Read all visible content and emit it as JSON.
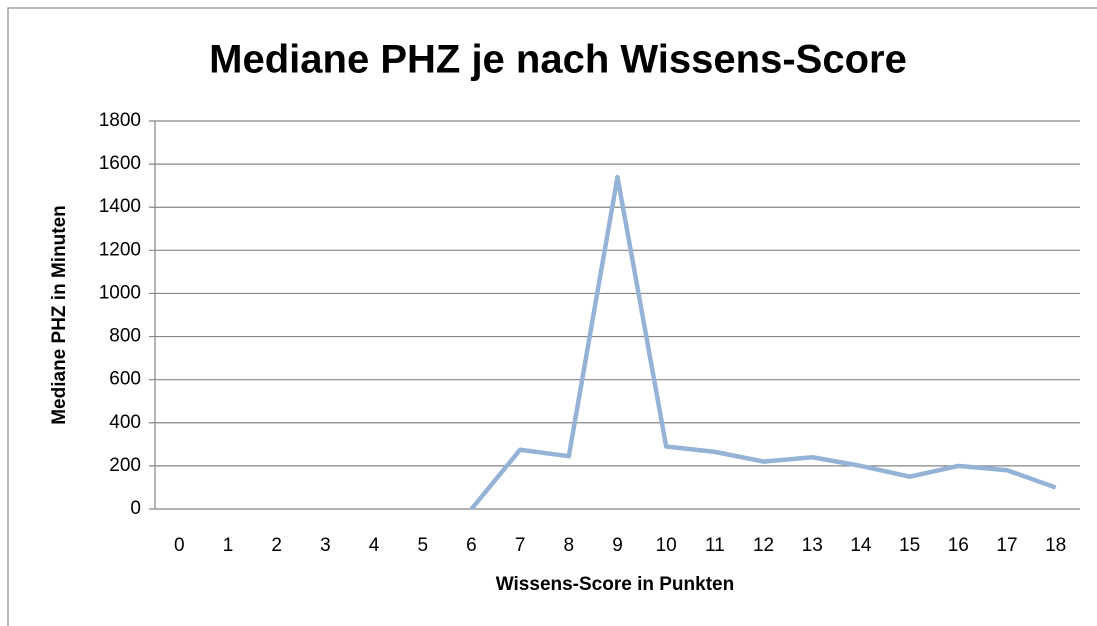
{
  "chart_data": {
    "type": "line",
    "title": "Mediane PHZ je nach Wissens-Score",
    "x_label": "Wissens-Score in Punkten",
    "y_label": "Mediane PHZ in Minuten",
    "categories": [
      "0",
      "1",
      "2",
      "3",
      "4",
      "5",
      "6",
      "7",
      "8",
      "9",
      "10",
      "11",
      "12",
      "13",
      "14",
      "15",
      "16",
      "17",
      "18"
    ],
    "series": [
      {
        "name": "Mediane PHZ",
        "color": "#95b3d7",
        "values": [
          null,
          null,
          null,
          null,
          null,
          null,
          0,
          275,
          245,
          1540,
          290,
          265,
          220,
          240,
          200,
          150,
          200,
          180,
          100
        ]
      }
    ],
    "ylim": [
      0,
      1800
    ],
    "yticks": [
      0,
      200,
      400,
      600,
      800,
      1000,
      1200,
      1400,
      1600,
      1800
    ],
    "grid": true,
    "legend": false
  }
}
